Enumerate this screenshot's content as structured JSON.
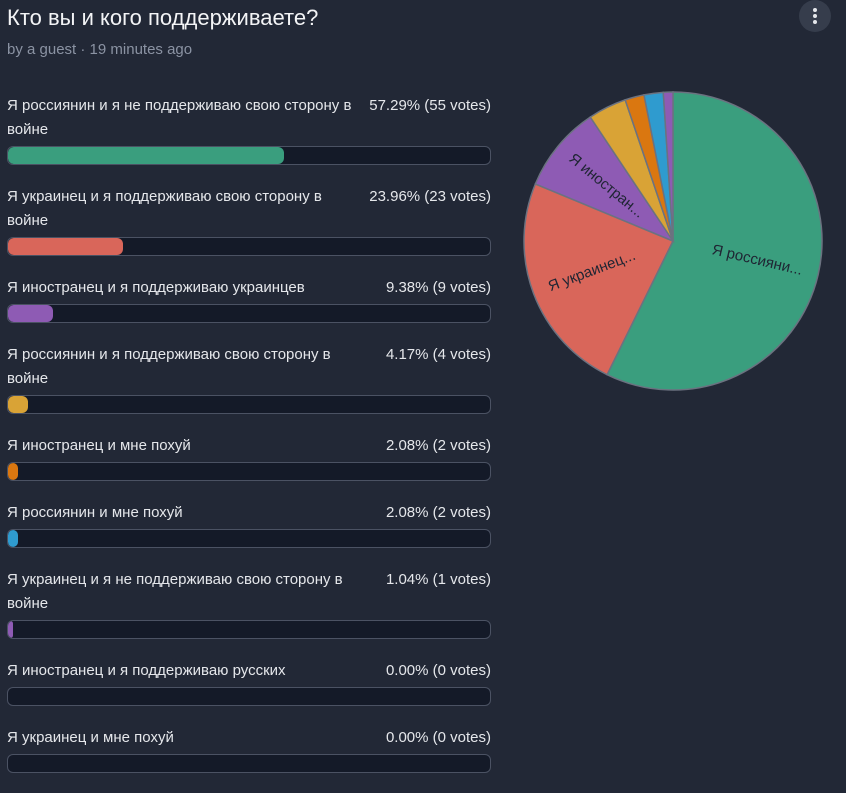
{
  "title": "Кто вы и кого поддерживаете?",
  "byline": "by a guest · 19 minutes ago",
  "options": [
    {
      "label": "Я россиянин и я не поддерживаю свою сторону в войне",
      "percent": 57.29,
      "result": "57.29% (55 votes)",
      "color": "#3a9e7e"
    },
    {
      "label": "Я украинец и я поддерживаю свою сторону в войне",
      "percent": 23.96,
      "result": "23.96% (23 votes)",
      "color": "#d9665a"
    },
    {
      "label": "Я иностранец и я поддерживаю украинцев",
      "percent": 9.38,
      "result": "9.38% (9 votes)",
      "color": "#8e5bb4"
    },
    {
      "label": "Я россиянин и я поддерживаю свою сторону в войне",
      "percent": 4.17,
      "result": "4.17% (4 votes)",
      "color": "#d9a336"
    },
    {
      "label": "Я иностранец и мне похуй",
      "percent": 2.08,
      "result": "2.08% (2 votes)",
      "color": "#da7710"
    },
    {
      "label": "Я россиянин и мне похуй",
      "percent": 2.08,
      "result": "2.08% (2 votes)",
      "color": "#2f9bcf"
    },
    {
      "label": "Я украинец и я не поддерживаю свою сторону в войне",
      "percent": 1.04,
      "result": "1.04% (1 votes)",
      "color": "#8e5bb4"
    },
    {
      "label": "Я иностранец и я поддерживаю русских",
      "percent": 0,
      "result": "0.00% (0 votes)"
    },
    {
      "label": "Я украинец и мне похуй",
      "percent": 0,
      "result": "0.00% (0 votes)"
    }
  ],
  "pie_labels": [
    "Я россияни...",
    "Я украинец...",
    "Я иностран..."
  ]
}
